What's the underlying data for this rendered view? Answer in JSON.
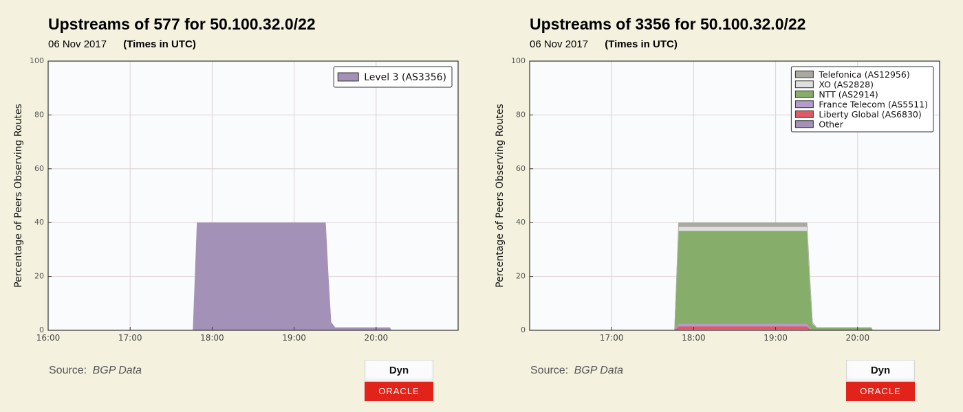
{
  "panels": [
    {
      "title": "Upstreams of 577 for 50.100.32.0/22",
      "date": "06 Nov 2017",
      "timezone": "(Times in UTC)",
      "source_label": "Source:",
      "source_value": "BGP Data",
      "logo": {
        "top": "Dyn",
        "bottom": "ORACLE"
      }
    },
    {
      "title": "Upstreams of 3356 for 50.100.32.0/22",
      "date": "06 Nov 2017",
      "timezone": "(Times in UTC)",
      "source_label": "Source:",
      "source_value": "BGP Data",
      "logo": {
        "top": "Dyn",
        "bottom": "ORACLE"
      }
    }
  ],
  "chart_data": [
    {
      "type": "area",
      "stacked": true,
      "title": "Upstreams of 577 for 50.100.32.0/22",
      "ylabel": "Percentage of Peers Observing Routes",
      "xlabel": "",
      "ylim": [
        0,
        100
      ],
      "xlim": [
        "16:00",
        "21:00"
      ],
      "yticks": [
        0,
        20,
        40,
        60,
        80,
        100
      ],
      "xticks": [
        "16:00",
        "17:00",
        "18:00",
        "19:00",
        "20:00"
      ],
      "grid": true,
      "legend_position": "top-right",
      "x": [
        "16:00",
        "17:46",
        "17:49",
        "19:23",
        "19:25",
        "19:27",
        "19:30",
        "20:10",
        "20:11",
        "21:00"
      ],
      "series": [
        {
          "name": "Level 3 (AS3356)",
          "color": "#a491b7",
          "values": [
            0,
            0,
            40,
            40,
            20,
            3,
            1,
            1,
            0,
            0
          ]
        }
      ]
    },
    {
      "type": "area",
      "stacked": true,
      "title": "Upstreams of 3356 for 50.100.32.0/22",
      "ylabel": "Percentage of Peers Observing Routes",
      "xlabel": "",
      "ylim": [
        0,
        100
      ],
      "xlim": [
        "16:00",
        "21:00"
      ],
      "yticks": [
        0,
        20,
        40,
        60,
        80,
        100
      ],
      "xticks": [
        "17:00",
        "18:00",
        "19:00",
        "20:00"
      ],
      "grid": true,
      "legend_position": "top-right",
      "x": [
        "16:00",
        "17:46",
        "17:49",
        "19:23",
        "19:25",
        "19:27",
        "19:30",
        "20:10",
        "20:11",
        "21:00"
      ],
      "series": [
        {
          "name": "Other",
          "color": "#a491b7",
          "values": [
            0,
            0,
            0.5,
            0.5,
            0,
            0,
            0,
            0,
            0,
            0
          ]
        },
        {
          "name": "Liberty Global (AS6830)",
          "color": "#e05a66",
          "values": [
            0,
            0,
            1,
            1,
            0.5,
            0,
            0,
            0,
            0,
            0
          ]
        },
        {
          "name": "France Telecom (AS5511)",
          "color": "#b39cc9",
          "values": [
            0,
            0,
            1,
            1,
            0.5,
            0,
            0,
            0,
            0,
            0
          ]
        },
        {
          "name": "NTT (AS2914)",
          "color": "#86ad6a",
          "values": [
            0,
            0,
            34.5,
            34.5,
            17,
            2.5,
            1,
            1,
            0,
            0
          ]
        },
        {
          "name": "XO (AS2828)",
          "color": "#dedede",
          "values": [
            0,
            0,
            1.5,
            1.5,
            1,
            0.3,
            0,
            0,
            0,
            0
          ]
        },
        {
          "name": "Telefonica (AS12956)",
          "color": "#a9a9a2",
          "values": [
            0,
            0,
            1.5,
            1.5,
            1,
            0.2,
            0,
            0,
            0,
            0
          ]
        }
      ]
    }
  ]
}
